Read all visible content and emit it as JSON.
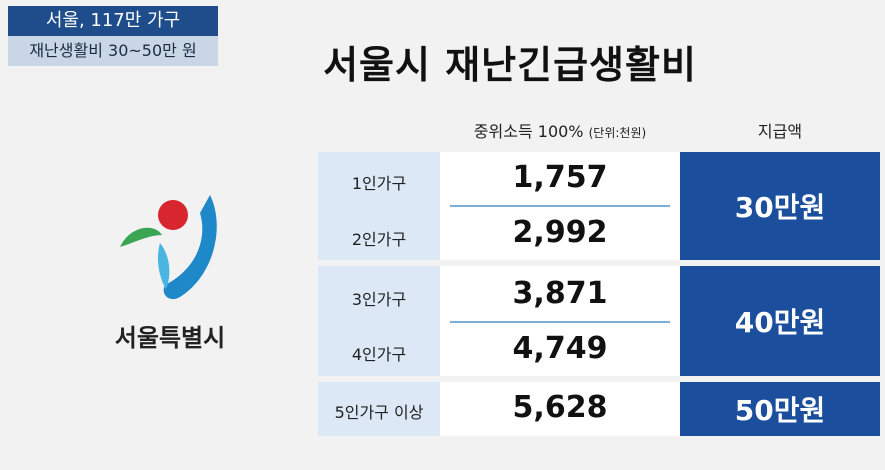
{
  "badge": {
    "line1": "서울, 117만 가구",
    "line2": "재난생활비 30~50만 원"
  },
  "title": "서울시 재난긴급생활비",
  "logo": {
    "label": "서울특별시"
  },
  "table": {
    "header": {
      "income": "중위소득 100%",
      "unit": "(단위:천원)",
      "amount": "지급액"
    },
    "groups": [
      {
        "rows": [
          {
            "household": "1인가구",
            "income": "1,757"
          },
          {
            "household": "2인가구",
            "income": "2,992"
          }
        ],
        "amount": "30만원"
      },
      {
        "rows": [
          {
            "household": "3인가구",
            "income": "3,871"
          },
          {
            "household": "4인가구",
            "income": "4,749"
          }
        ],
        "amount": "40만원"
      },
      {
        "rows": [
          {
            "household": "5인가구 이상",
            "income": "5,628"
          }
        ],
        "amount": "50만원"
      }
    ]
  }
}
